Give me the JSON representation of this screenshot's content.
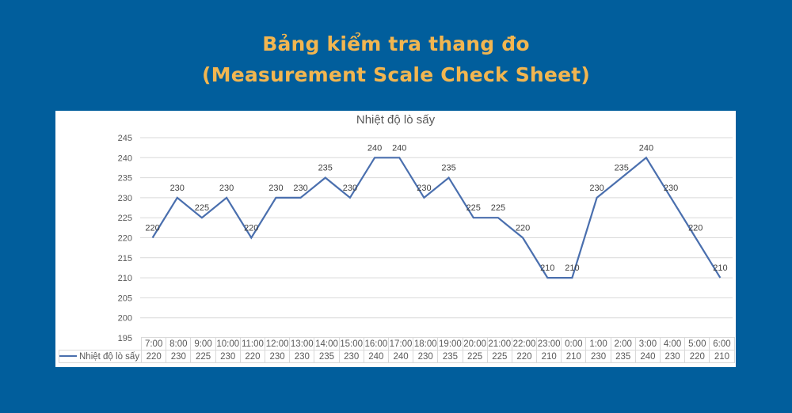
{
  "header": {
    "title_line1": "Bảng kiểm tra thang đo",
    "title_line2": "(Measurement Scale Check Sheet)"
  },
  "colors": {
    "background": "#015e9c",
    "title": "#f2b650",
    "series_line": "#4a6fae",
    "gridline": "#d9d9d9"
  },
  "chart_data": {
    "type": "line",
    "title": "Nhiệt độ lò sấy",
    "xlabel": "",
    "ylabel": "",
    "ylim": [
      195,
      245
    ],
    "yticks": [
      195,
      200,
      205,
      210,
      215,
      220,
      225,
      230,
      235,
      240,
      245
    ],
    "grid": true,
    "legend_position": "data-table",
    "data_labels": true,
    "categories": [
      "7:00",
      "8:00",
      "9:00",
      "10:00",
      "11:00",
      "12:00",
      "13:00",
      "14:00",
      "15:00",
      "16:00",
      "17:00",
      "18:00",
      "19:00",
      "20:00",
      "21:00",
      "22:00",
      "23:00",
      "0:00",
      "1:00",
      "2:00",
      "3:00",
      "4:00",
      "5:00",
      "6:00"
    ],
    "series": [
      {
        "name": "Nhiệt độ lò sấy",
        "values": [
          220,
          230,
          225,
          230,
          220,
          230,
          230,
          235,
          230,
          240,
          240,
          230,
          235,
          225,
          225,
          220,
          210,
          210,
          230,
          235,
          240,
          230,
          220,
          210
        ]
      }
    ]
  }
}
